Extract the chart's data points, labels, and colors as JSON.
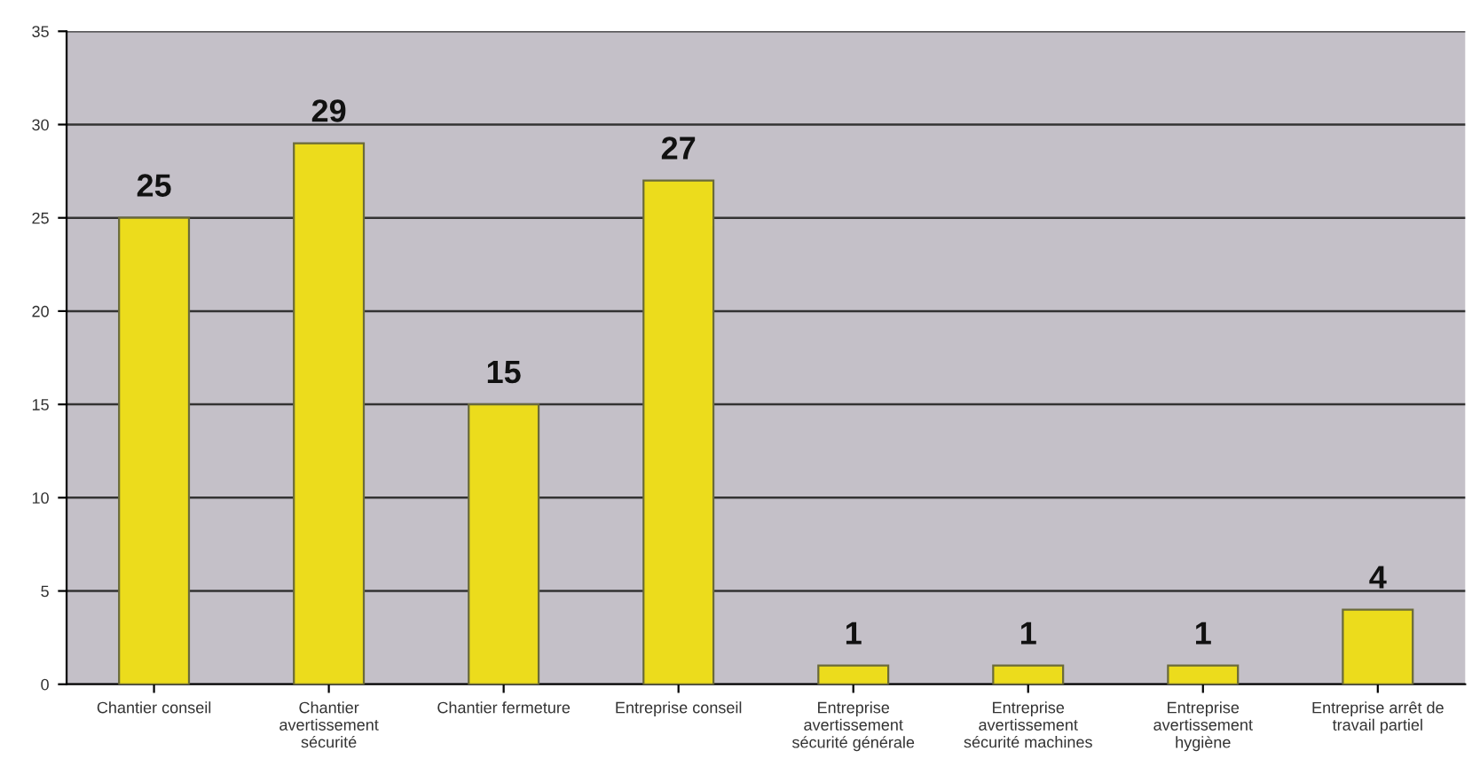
{
  "chart_data": {
    "type": "bar",
    "categories": [
      "Chantier conseil",
      "Chantier\navertissement\nsécurité",
      "Chantier fermeture",
      "Entreprise conseil",
      "Entreprise\navertissement\nsécurité générale",
      "Entreprise\navertissement\nsécurité machines",
      "Entreprise\navertissement\nhygiène",
      "Entreprise arrêt de\ntravail partiel"
    ],
    "values": [
      25,
      29,
      15,
      27,
      1,
      1,
      1,
      4
    ],
    "color": "#ecdc1c",
    "ylim": [
      0,
      35
    ],
    "yticks": [
      0,
      5,
      10,
      15,
      20,
      25,
      30,
      35
    ],
    "grid": "y",
    "data_labels": true
  }
}
